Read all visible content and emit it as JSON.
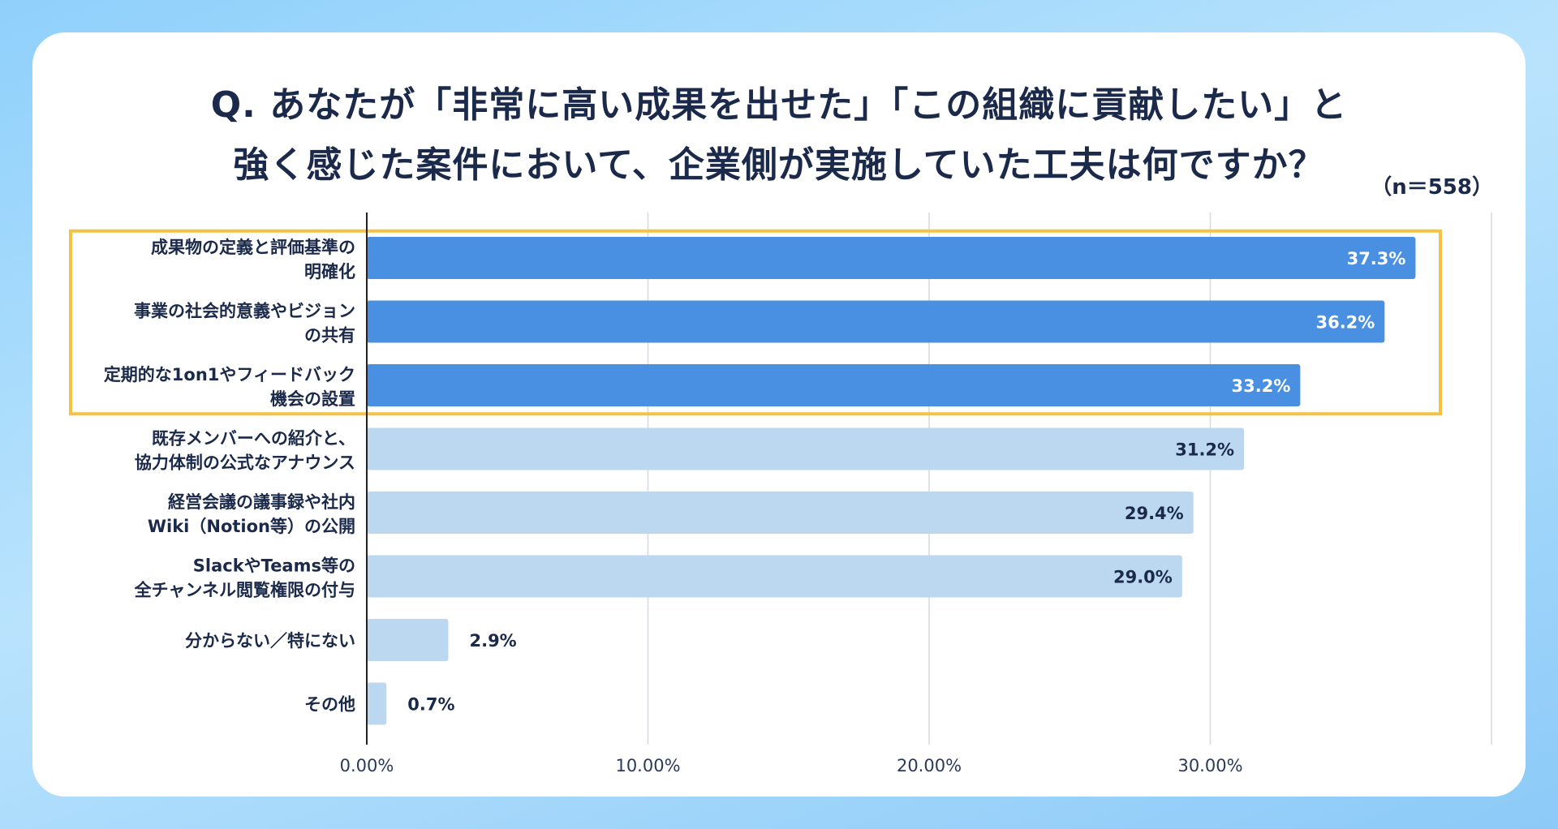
{
  "title_lines": [
    "Q. あなたが「非常に高い成果を出せた」「この組織に貢献したい」と",
    "強く感じた案件において、企業側が実施していた工夫は何ですか？"
  ],
  "sample_size": "（n＝558）",
  "colors": {
    "highlight_bar": "#4a90e2",
    "regular_bar": "#bcd7f0",
    "highlight_box": "#f5c242",
    "highlight_value_text": "#ffffff",
    "regular_value_text": "#1b2a4a"
  },
  "chart_data": {
    "type": "bar",
    "orientation": "horizontal",
    "categories": [
      [
        "成果物の定義と評価基準の",
        "明確化"
      ],
      [
        "事業の社会的意義やビジョン",
        "の共有"
      ],
      [
        "定期的な1on1やフィードバック",
        "機会の設置"
      ],
      [
        "既存メンバーへの紹介と、",
        "協力体制の公式なアナウンス"
      ],
      [
        "経営会議の議事録や社内",
        "Wiki（Notion等）の公開"
      ],
      [
        "SlackやTeams等の",
        "全チャンネル閲覧権限の付与"
      ],
      [
        "分からない／特にない"
      ],
      [
        "その他"
      ]
    ],
    "values": [
      37.3,
      36.2,
      33.2,
      31.2,
      29.4,
      29.0,
      2.9,
      0.7
    ],
    "value_labels": [
      "37.3%",
      "36.2%",
      "33.2%",
      "31.2%",
      "29.4%",
      "29.0%",
      "2.9%",
      "0.7%"
    ],
    "highlighted": [
      true,
      true,
      true,
      false,
      false,
      false,
      false,
      false
    ],
    "xlim": [
      0,
      40
    ],
    "xticks": [
      0,
      10,
      20,
      30
    ],
    "xtick_labels": [
      "0.00%",
      "10.00%",
      "20.00%",
      "30.00%"
    ],
    "grid": true
  }
}
